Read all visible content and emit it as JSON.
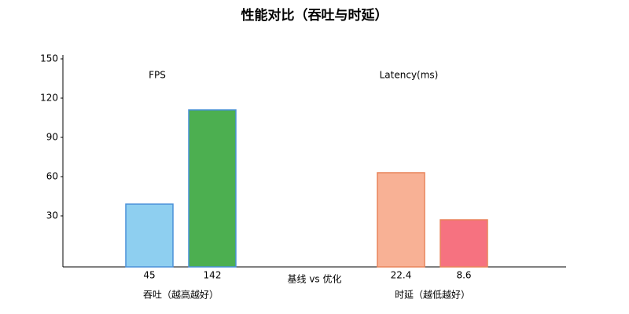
{
  "chart_data": {
    "type": "bar",
    "title": "性能对比（吞吐与时延）",
    "xlabel": "基线 vs 优化",
    "categories": [
      "45",
      "142",
      "22.4",
      "8.6"
    ],
    "values": [
      39,
      111,
      63,
      27
    ],
    "colors": [
      "#8ecff0",
      "#4caf50",
      "#f8b195",
      "#f67280"
    ],
    "edge_colors": [
      "#4a90d9",
      "#4a90d9",
      "#e8845a",
      "#e8845a"
    ],
    "groups": [
      {
        "label": "吞吐（越高越好）",
        "annotation": "FPS"
      },
      {
        "label": "时延（越低越好）",
        "annotation": "Latency(ms)"
      }
    ],
    "ylim": [
      -9,
      153
    ],
    "yticks": [
      30,
      60,
      90,
      120,
      150
    ],
    "grid": false
  }
}
